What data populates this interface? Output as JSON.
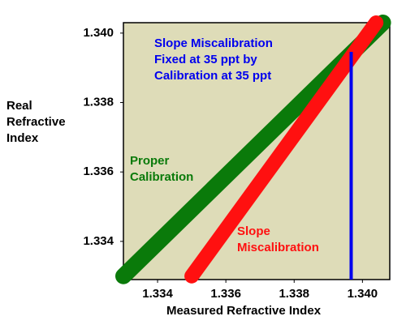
{
  "chart_data": {
    "type": "line",
    "xlabel": "Measured Refractive Index",
    "ylabel": [
      "Real",
      "Refractive",
      "Index"
    ],
    "xlim": [
      1.333,
      1.3408
    ],
    "ylim": [
      1.3329,
      1.3403
    ],
    "xticks": [
      1.334,
      1.336,
      1.338,
      {
        "value": 1.34,
        "label": "1.340"
      }
    ],
    "yticks": [
      1.334,
      1.336,
      1.338,
      {
        "value": 1.34,
        "label": "1.340"
      }
    ],
    "series": [
      {
        "color": "#0a7a0a",
        "x": [
          1.333,
          1.3406
        ],
        "values": [
          1.333,
          1.3403
        ]
      },
      {
        "color": "#ff1010",
        "x": [
          1.335,
          1.3404
        ],
        "values": [
          1.333,
          1.3403
        ]
      },
      {
        "color": "#0000ee",
        "x": [
          1.33967,
          1.33967
        ],
        "values": [
          1.3329,
          1.33946
        ]
      }
    ],
    "annotations": [
      {
        "lines": [
          "Slope Miscalibration",
          "Fixed at 35 ppt by",
          "Calibration at 35 ppt"
        ],
        "color": "#0000ee"
      },
      {
        "lines": [
          "Proper",
          "Calibration"
        ],
        "color": "#0a7a0a"
      },
      {
        "lines": [
          "Slope",
          "Miscalibration"
        ],
        "color": "#ff1010"
      }
    ]
  }
}
